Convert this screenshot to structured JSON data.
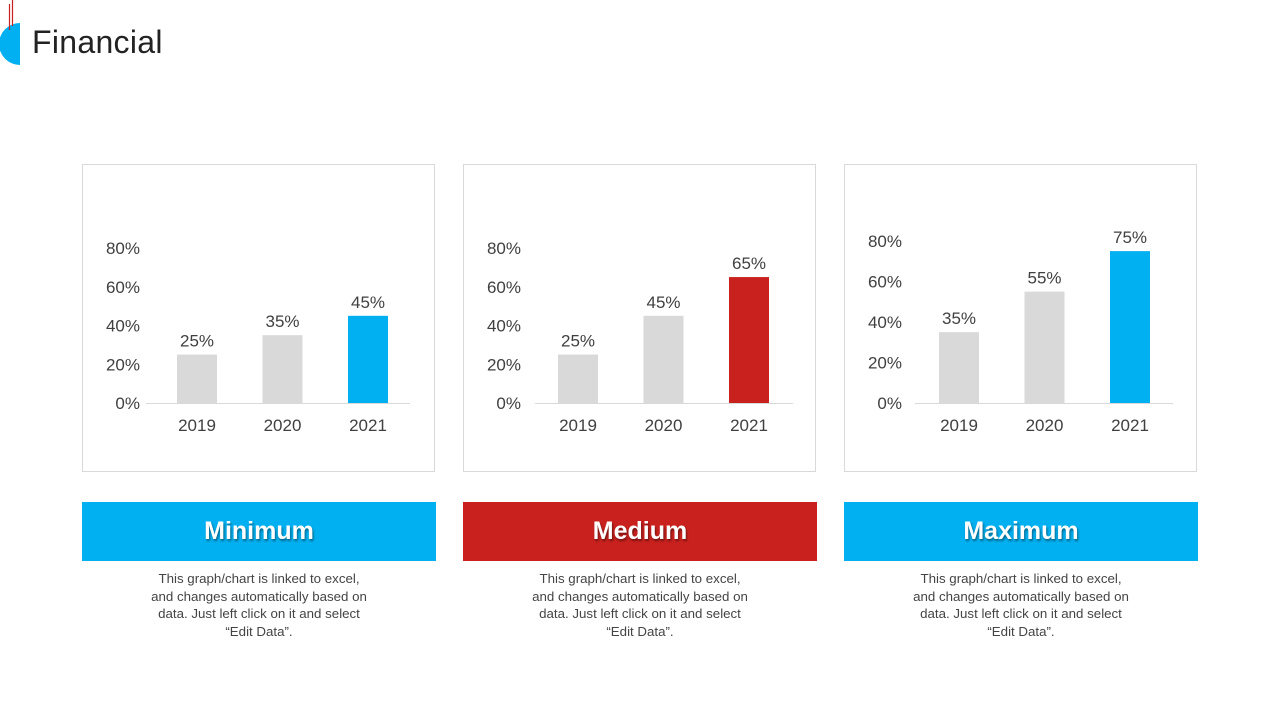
{
  "title": "Financial",
  "colors": {
    "gray_bar": "#d9d9d9",
    "blue": "#00b0f0",
    "red": "#c9211e",
    "axis": "#d9d9d9",
    "tick_text": "#404040"
  },
  "chart_data": [
    {
      "type": "bar",
      "categories": [
        "2019",
        "2020",
        "2021"
      ],
      "values": [
        25,
        35,
        45
      ],
      "value_labels": [
        "25%",
        "35%",
        "45%"
      ],
      "bar_colors": [
        "#d9d9d9",
        "#d9d9d9",
        "#00b0f0"
      ],
      "yticks": [
        "0%",
        "20%",
        "40%",
        "60%",
        "80%"
      ],
      "ylim": [
        0,
        80
      ],
      "gridlines": false
    },
    {
      "type": "bar",
      "categories": [
        "2019",
        "2020",
        "2021"
      ],
      "values": [
        25,
        45,
        65
      ],
      "value_labels": [
        "25%",
        "45%",
        "65%"
      ],
      "bar_colors": [
        "#d9d9d9",
        "#d9d9d9",
        "#c9211e"
      ],
      "yticks": [
        "0%",
        "20%",
        "40%",
        "60%",
        "80%"
      ],
      "ylim": [
        0,
        80
      ],
      "gridlines": false
    },
    {
      "type": "bar",
      "categories": [
        "2019",
        "2020",
        "2021"
      ],
      "values": [
        35,
        55,
        75
      ],
      "value_labels": [
        "35%",
        "55%",
        "75%"
      ],
      "bar_colors": [
        "#d9d9d9",
        "#d9d9d9",
        "#00b0f0"
      ],
      "yticks": [
        "0%",
        "20%",
        "40%",
        "60%",
        "80%"
      ],
      "ylim": [
        0,
        80
      ],
      "gridlines": false
    }
  ],
  "panels": [
    {
      "label": "Minimum",
      "color": "#00b0f0",
      "description": "This graph/chart is linked to excel, and changes automatically based on data. Just left click on it and select “Edit Data”."
    },
    {
      "label": "Medium",
      "color": "#c9211e",
      "description": "This graph/chart is linked to excel, and changes automatically based on data. Just left click on it and select “Edit Data”."
    },
    {
      "label": "Maximum",
      "color": "#00b0f0",
      "description": "This graph/chart is linked to excel, and changes automatically based on data. Just left click on it and select “Edit Data”."
    }
  ]
}
